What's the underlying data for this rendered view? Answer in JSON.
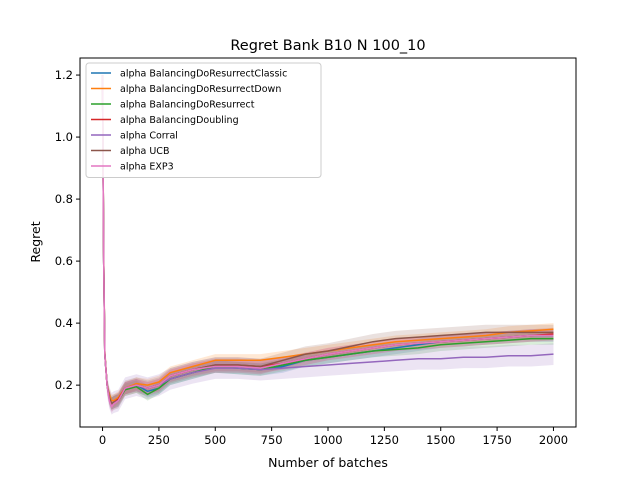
{
  "chart_data": {
    "type": "line",
    "title": "Regret Bank B10 N 100_10",
    "xlabel": "Number of batches",
    "ylabel": "Regret",
    "xlim": [
      -100,
      2100
    ],
    "ylim": [
      0.065,
      1.255
    ],
    "xticks": [
      {
        "value": 0,
        "label": "0"
      },
      {
        "value": 250,
        "label": "250"
      },
      {
        "value": 500,
        "label": "500"
      },
      {
        "value": 750,
        "label": "750"
      },
      {
        "value": 1000,
        "label": "1000"
      },
      {
        "value": 1250,
        "label": "1250"
      },
      {
        "value": 1500,
        "label": "1500"
      },
      {
        "value": 1750,
        "label": "1750"
      },
      {
        "value": 2000,
        "label": "2000"
      }
    ],
    "yticks": [
      {
        "value": 0.2,
        "label": "0.2"
      },
      {
        "value": 0.4,
        "label": "0.4"
      },
      {
        "value": 0.6,
        "label": "0.6"
      },
      {
        "value": 0.8,
        "label": "0.8"
      },
      {
        "value": 1.0,
        "label": "1.0"
      },
      {
        "value": 1.2,
        "label": "1.2"
      }
    ],
    "grid": false,
    "legend_position": "top-left",
    "x": [
      0,
      5,
      10,
      20,
      30,
      40,
      50,
      70,
      100,
      150,
      200,
      250,
      300,
      400,
      500,
      600,
      700,
      800,
      900,
      1000,
      1100,
      1200,
      1300,
      1400,
      1500,
      1600,
      1700,
      1800,
      1900,
      2000
    ],
    "series": [
      {
        "name": "alpha BalancingDoResurrectClassic",
        "color": "#1f77b4",
        "band": 0.02,
        "values": [
          1.2,
          0.6,
          0.3,
          0.2,
          0.16,
          0.14,
          0.145,
          0.15,
          0.19,
          0.2,
          0.18,
          0.19,
          0.22,
          0.24,
          0.26,
          0.255,
          0.25,
          0.26,
          0.28,
          0.29,
          0.3,
          0.31,
          0.32,
          0.33,
          0.34,
          0.345,
          0.35,
          0.355,
          0.36,
          0.36
        ]
      },
      {
        "name": "alpha BalancingDoResurrectDown",
        "color": "#ff7f0e",
        "band": 0.02,
        "values": [
          1.2,
          0.62,
          0.31,
          0.2,
          0.17,
          0.15,
          0.15,
          0.16,
          0.19,
          0.205,
          0.2,
          0.21,
          0.24,
          0.26,
          0.28,
          0.28,
          0.28,
          0.29,
          0.3,
          0.31,
          0.32,
          0.33,
          0.34,
          0.345,
          0.35,
          0.355,
          0.36,
          0.37,
          0.375,
          0.38
        ]
      },
      {
        "name": "alpha BalancingDoResurrect",
        "color": "#2ca02c",
        "band": 0.02,
        "values": [
          1.2,
          0.6,
          0.3,
          0.2,
          0.16,
          0.14,
          0.145,
          0.15,
          0.185,
          0.195,
          0.17,
          0.19,
          0.22,
          0.24,
          0.26,
          0.255,
          0.25,
          0.265,
          0.28,
          0.29,
          0.3,
          0.31,
          0.315,
          0.32,
          0.33,
          0.335,
          0.34,
          0.345,
          0.35,
          0.35
        ]
      },
      {
        "name": "alpha BalancingDoubling",
        "color": "#d62728",
        "band": 0.02,
        "values": [
          1.2,
          0.6,
          0.3,
          0.2,
          0.16,
          0.14,
          0.145,
          0.155,
          0.19,
          0.2,
          0.19,
          0.2,
          0.23,
          0.25,
          0.265,
          0.265,
          0.26,
          0.27,
          0.285,
          0.3,
          0.31,
          0.32,
          0.33,
          0.335,
          0.34,
          0.345,
          0.35,
          0.355,
          0.36,
          0.365
        ]
      },
      {
        "name": "alpha Corral",
        "color": "#9467bd",
        "band": 0.035,
        "values": [
          1.2,
          0.6,
          0.3,
          0.2,
          0.16,
          0.14,
          0.145,
          0.15,
          0.19,
          0.2,
          0.19,
          0.2,
          0.22,
          0.24,
          0.255,
          0.255,
          0.25,
          0.255,
          0.26,
          0.265,
          0.27,
          0.275,
          0.28,
          0.285,
          0.285,
          0.29,
          0.29,
          0.295,
          0.295,
          0.3
        ]
      },
      {
        "name": "alpha UCB",
        "color": "#8c564b",
        "band": 0.025,
        "values": [
          1.2,
          0.6,
          0.3,
          0.2,
          0.16,
          0.14,
          0.145,
          0.15,
          0.19,
          0.2,
          0.19,
          0.2,
          0.23,
          0.25,
          0.265,
          0.265,
          0.26,
          0.28,
          0.3,
          0.31,
          0.325,
          0.34,
          0.35,
          0.355,
          0.36,
          0.365,
          0.37,
          0.37,
          0.37,
          0.37
        ]
      },
      {
        "name": "alpha EXP3",
        "color": "#e377c2",
        "band": 0.02,
        "values": [
          1.2,
          0.6,
          0.3,
          0.2,
          0.15,
          0.13,
          0.14,
          0.15,
          0.19,
          0.2,
          0.19,
          0.2,
          0.23,
          0.25,
          0.26,
          0.26,
          0.255,
          0.27,
          0.285,
          0.3,
          0.31,
          0.32,
          0.33,
          0.335,
          0.34,
          0.345,
          0.35,
          0.355,
          0.36,
          0.36
        ]
      }
    ]
  }
}
